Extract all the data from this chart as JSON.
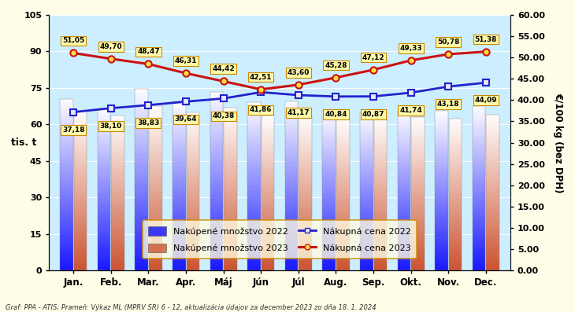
{
  "months": [
    "Jan.",
    "Feb.",
    "Mar.",
    "Apr.",
    "Máj",
    "Jún",
    "Júl",
    "Aug.",
    "Sep.",
    "Okt.",
    "Nov.",
    "Dec."
  ],
  "bar_2022_heights": [
    70.5,
    66.5,
    74.5,
    69.5,
    73.5,
    69.0,
    69.5,
    65.5,
    64.5,
    65.5,
    65.5,
    67.5
  ],
  "bar_2023_heights": [
    65.5,
    63.5,
    67.5,
    65.0,
    67.0,
    63.5,
    63.5,
    62.5,
    62.5,
    63.0,
    62.5,
    64.0
  ],
  "price_2022_vals": [
    37.18,
    38.1,
    38.83,
    39.64,
    40.38,
    41.86,
    41.17,
    40.84,
    40.87,
    41.74,
    43.18,
    44.09
  ],
  "price_2023_vals": [
    51.05,
    49.7,
    48.47,
    46.31,
    44.42,
    42.51,
    43.6,
    45.28,
    47.12,
    49.33,
    50.78,
    51.38
  ],
  "ylim_left": [
    0,
    105
  ],
  "ylim_right": [
    0.0,
    60.0
  ],
  "yticks_left": [
    0,
    15,
    30,
    45,
    60,
    75,
    90,
    105
  ],
  "yticks_right": [
    0.0,
    5.0,
    10.0,
    15.0,
    20.0,
    25.0,
    30.0,
    35.0,
    40.0,
    45.0,
    50.0,
    55.0,
    60.0
  ],
  "bar_color_2022_bottom": "#1a1aff",
  "bar_color_2022_top": "#ffffff",
  "bar_color_2023_bottom": "#cc5533",
  "bar_color_2023_top": "#ffffff",
  "line_color_2022": "#2222cc",
  "line_color_2023": "#cc1111",
  "bg_color": "#cceeff",
  "fig_bg_color": "#fffce8",
  "legend_bg": "#fffce0",
  "footnote": "Graf: PPA - ATIS; Prameň: Výkaz ML (MPRV SR) 6 - 12, aktualizácia údajov za december 2023 zo dňa 18. 1. 2024",
  "ylabel_left": "tis. t",
  "ylabel_right": "€/100 kg (bez DPH)",
  "label_box_color": "#fffaaa",
  "label_box_edge_2022": "#cc8800",
  "label_box_edge_2023": "#cc8800"
}
